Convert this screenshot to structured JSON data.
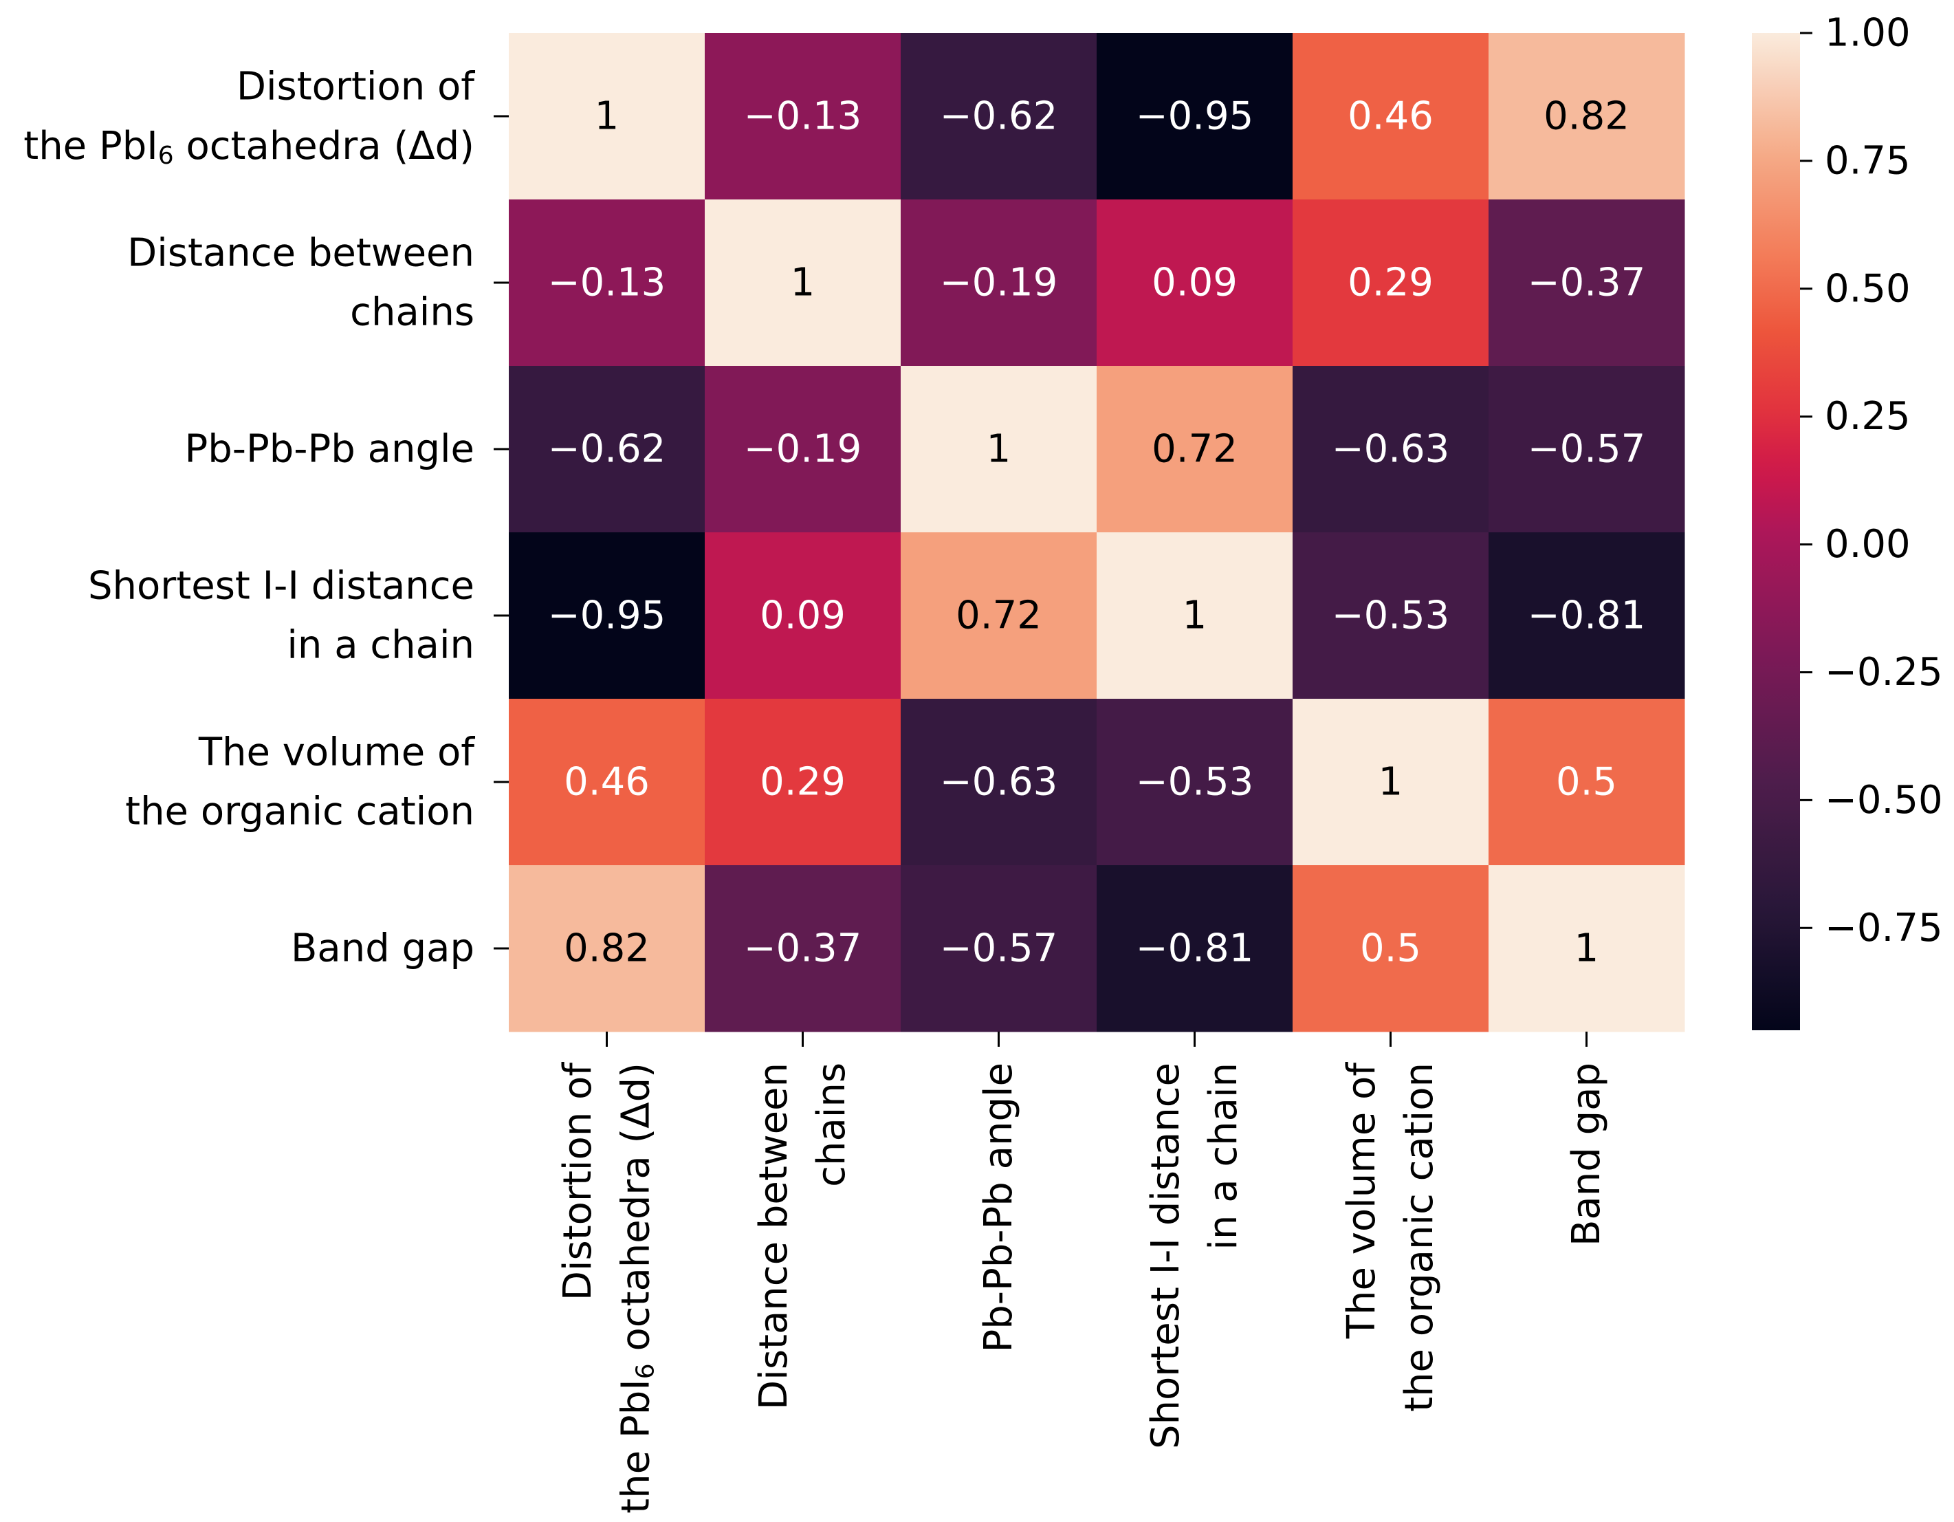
{
  "chart_data": {
    "type": "heatmap",
    "title": "",
    "row_labels": [
      [
        "Distortion of",
        "the PbI6 octahedra (Δd)"
      ],
      [
        "Distance between",
        "chains"
      ],
      [
        "Pb-Pb-Pb angle"
      ],
      [
        "Shortest I-I distance",
        "in a chain"
      ],
      [
        "The volume of",
        "the organic cation"
      ],
      [
        "Band gap"
      ]
    ],
    "col_labels": [
      [
        "Distortion of",
        "the PbI6 octahedra (Δd)"
      ],
      [
        "Distance between",
        "chains"
      ],
      [
        "Pb-Pb-Pb angle"
      ],
      [
        "Shortest I-I distance",
        "in a chain"
      ],
      [
        "The volume of",
        "the organic cation"
      ],
      [
        "Band gap"
      ]
    ],
    "values": [
      [
        1,
        -0.13,
        -0.62,
        -0.95,
        0.46,
        0.82
      ],
      [
        -0.13,
        1,
        -0.19,
        0.09,
        0.29,
        -0.37
      ],
      [
        -0.62,
        -0.19,
        1,
        0.72,
        -0.63,
        -0.57
      ],
      [
        -0.95,
        0.09,
        0.72,
        1,
        -0.53,
        -0.81
      ],
      [
        0.46,
        0.29,
        -0.63,
        -0.53,
        1,
        0.5
      ],
      [
        0.82,
        -0.37,
        -0.57,
        -0.81,
        0.5,
        1
      ]
    ],
    "cell_labels": [
      [
        "1",
        "−0.13",
        "−0.62",
        "−0.95",
        "0.46",
        "0.82"
      ],
      [
        "−0.13",
        "1",
        "−0.19",
        "0.09",
        "0.29",
        "−0.37"
      ],
      [
        "−0.62",
        "−0.19",
        "1",
        "0.72",
        "−0.63",
        "−0.57"
      ],
      [
        "−0.95",
        "0.09",
        "0.72",
        "1",
        "−0.53",
        "−0.81"
      ],
      [
        "0.46",
        "0.29",
        "−0.63",
        "−0.53",
        "1",
        "0.5"
      ],
      [
        "0.82",
        "−0.37",
        "−0.57",
        "−0.81",
        "0.5",
        "1"
      ]
    ],
    "colormap": "rocket",
    "vmin": -0.95,
    "vmax": 1.0,
    "colorbar_ticks": [
      1.0,
      0.75,
      0.5,
      0.25,
      0.0,
      -0.25,
      -0.5,
      -0.75
    ],
    "colorbar_tick_labels": [
      "1.00",
      "0.75",
      "0.50",
      "0.25",
      "0.00",
      "−0.25",
      "−0.50",
      "−0.75"
    ],
    "colorbar_placement": "right"
  }
}
